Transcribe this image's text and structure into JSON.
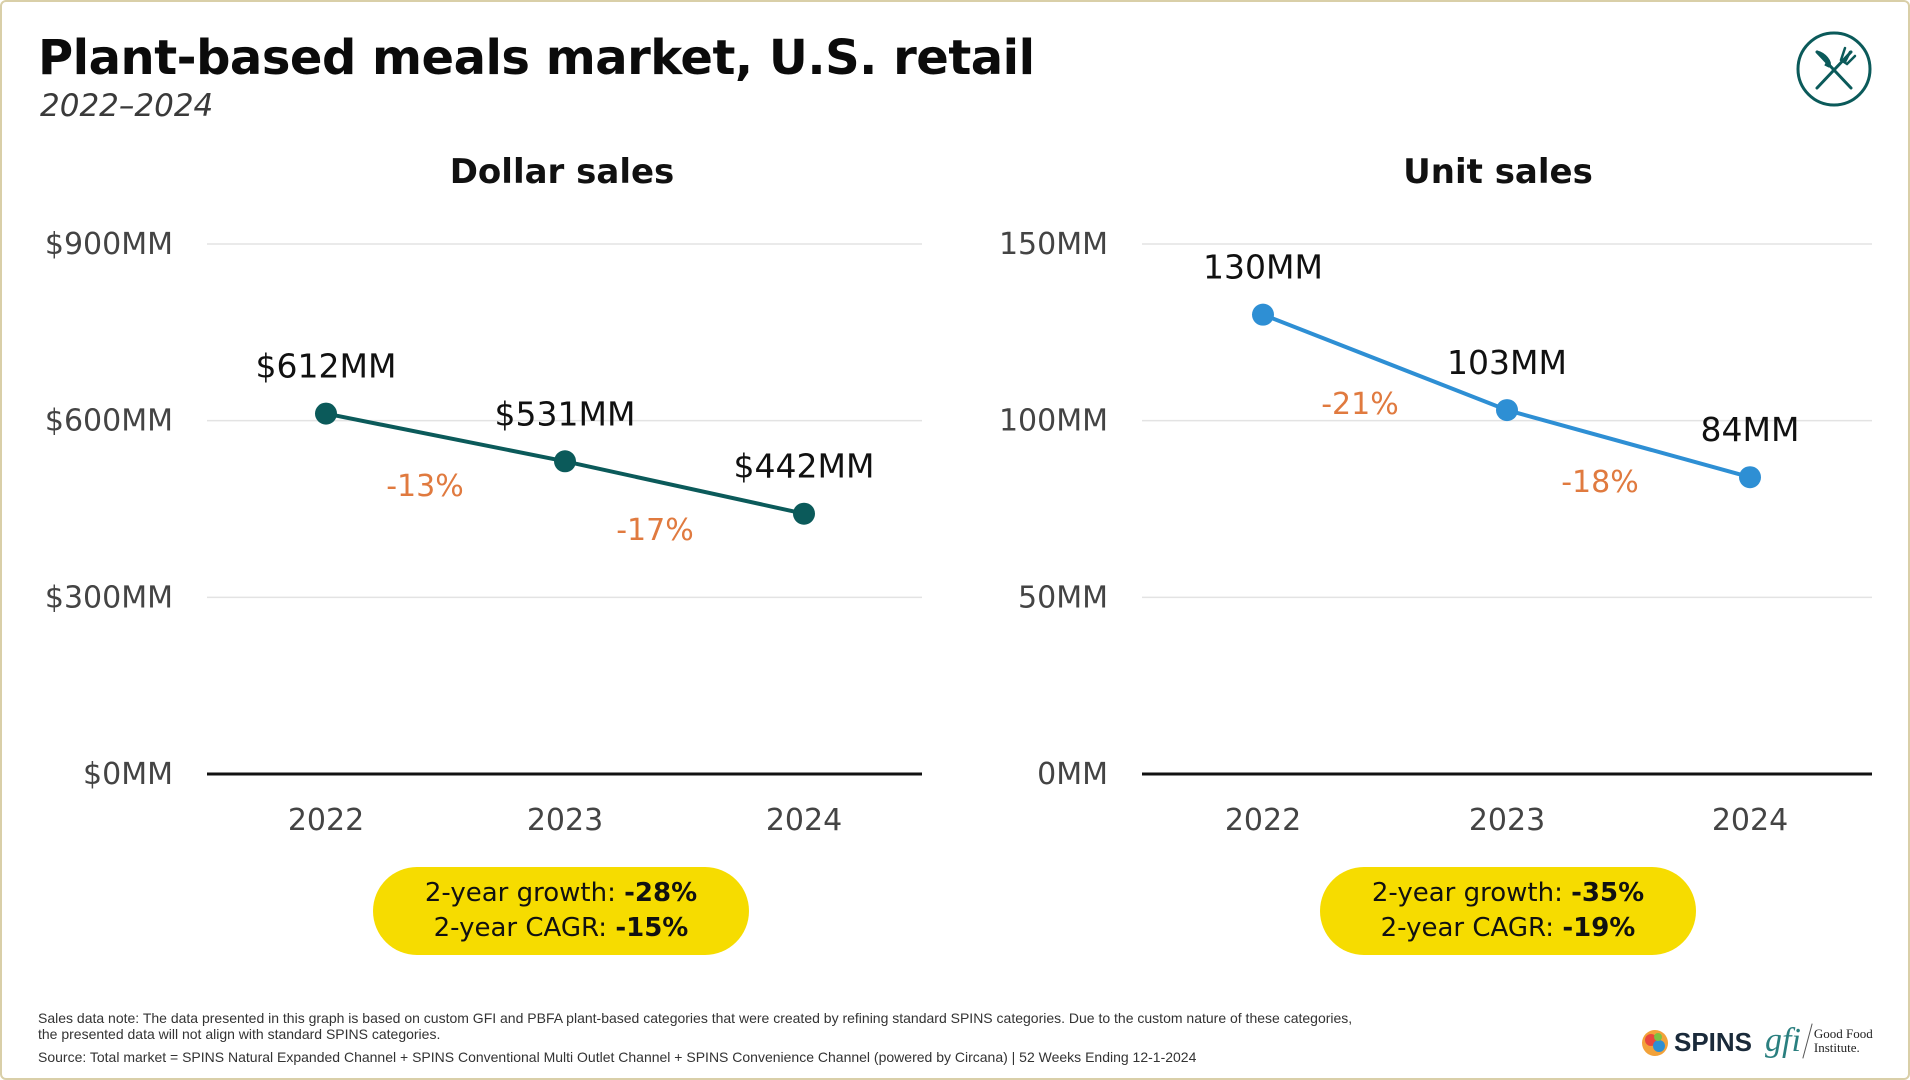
{
  "header": {
    "title": "Plant-based meals market, U.S. retail",
    "subtitle": "2022–2024"
  },
  "icons": {
    "brand_icon": "fork-knife-crossed-icon"
  },
  "colors": {
    "dollar_series": "#0b5a5a",
    "unit_series": "#2e8fd4",
    "change_label": "#e07a3f",
    "pill_bg": "#f6dc00",
    "gridline": "#e3e3e3",
    "axis": "#111111"
  },
  "chart_data": [
    {
      "type": "line",
      "title": "Dollar sales",
      "categories": [
        "2022",
        "2023",
        "2024"
      ],
      "values": [
        612,
        531,
        442
      ],
      "value_labels": [
        "$612MM",
        "$531MM",
        "$442MM"
      ],
      "changes": [
        "-13%",
        "-17%"
      ],
      "ylim": [
        0,
        900
      ],
      "yticks": [
        0,
        300,
        600,
        900
      ],
      "ytick_labels": [
        "$0MM",
        "$300MM",
        "$600MM",
        "$900MM"
      ],
      "xlabel": "",
      "ylabel": "",
      "summary": {
        "growth_label": "2-year growth:",
        "growth": "-28%",
        "cagr_label": "2-year CAGR:",
        "cagr": "-15%"
      }
    },
    {
      "type": "line",
      "title": "Unit sales",
      "categories": [
        "2022",
        "2023",
        "2024"
      ],
      "values": [
        130,
        103,
        84
      ],
      "value_labels": [
        "130MM",
        "103MM",
        "84MM"
      ],
      "changes": [
        "-21%",
        "-18%"
      ],
      "ylim": [
        0,
        150
      ],
      "yticks": [
        0,
        50,
        100,
        150
      ],
      "ytick_labels": [
        "0MM",
        "50MM",
        "100MM",
        "150MM"
      ],
      "xlabel": "",
      "ylabel": "",
      "summary": {
        "growth_label": "2-year growth:",
        "growth": "-35%",
        "cagr_label": "2-year CAGR:",
        "cagr": "-19%"
      }
    }
  ],
  "footer": {
    "note_line1": "Sales data note: The data presented in this graph is based on custom GFI and PBFA plant-based categories that were created by refining standard SPINS categories. Due to the custom nature of these categories,",
    "note_line2": "the presented data will not align with standard SPINS categories.",
    "source": "Source: Total market = SPINS Natural Expanded Channel + SPINS Conventional Multi Outlet Channel + SPINS Convenience Channel (powered by Circana) | 52 Weeks Ending 12-1-2024",
    "spins_logo": "SPINS",
    "gfi_mark": "gfi",
    "gfi_name_line1": "Good Food",
    "gfi_name_line2": "Institute."
  }
}
